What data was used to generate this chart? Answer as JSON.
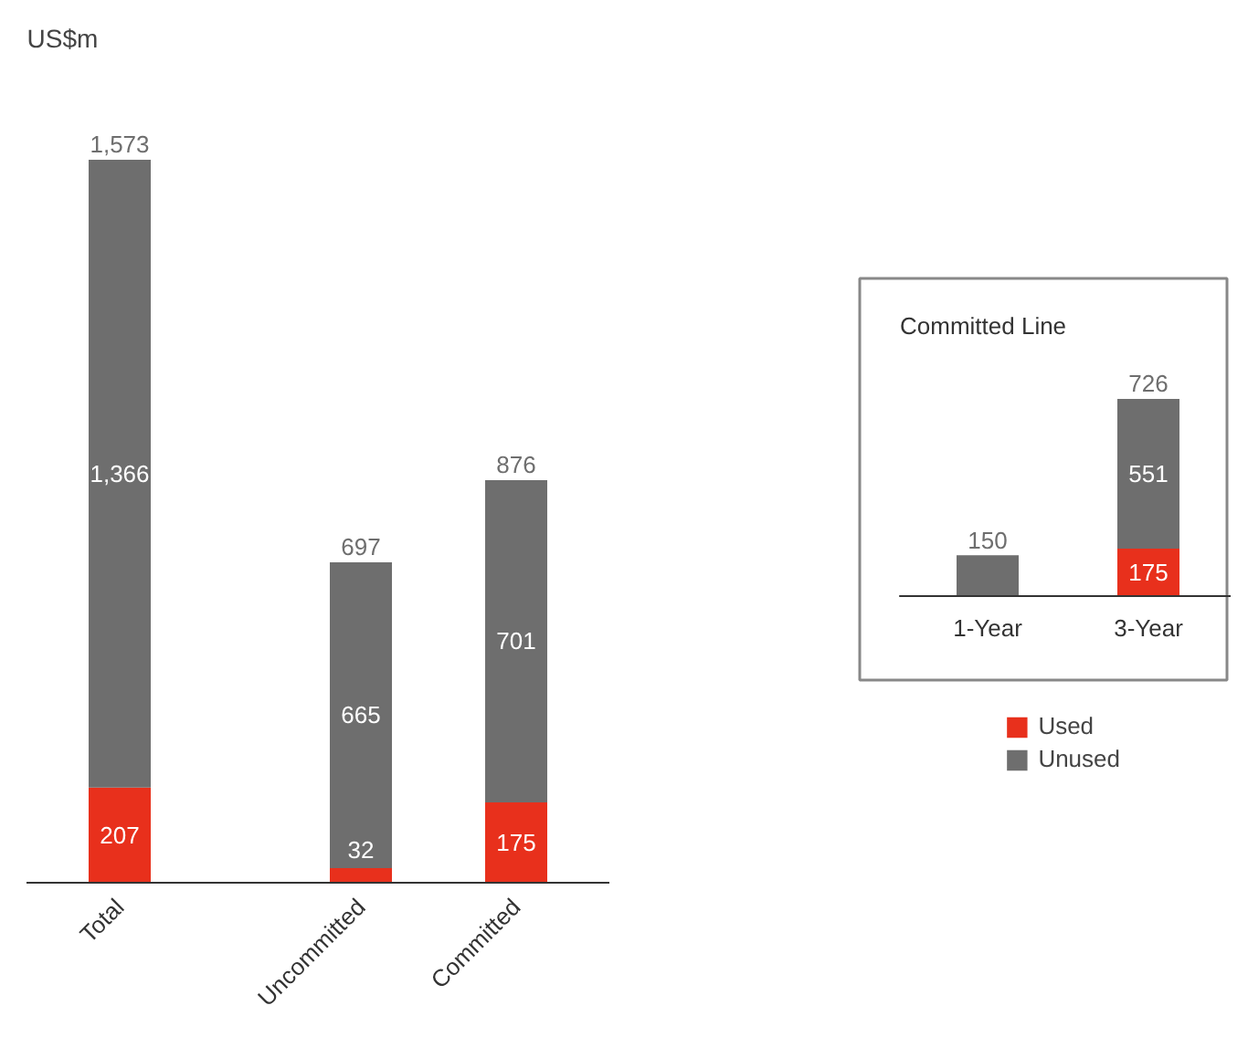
{
  "chart_data": [
    {
      "type": "bar",
      "stacked": true,
      "ylabel": "US$m",
      "categories": [
        "Total",
        "Uncommitted",
        "Committed"
      ],
      "series": [
        {
          "name": "Used",
          "color": "#e8301c",
          "values": [
            207,
            32,
            175
          ],
          "value_labels": [
            "207",
            "32",
            "175"
          ]
        },
        {
          "name": "Unused",
          "color": "#6e6e6e",
          "values": [
            1366,
            665,
            701
          ],
          "value_labels": [
            "1,366",
            "665",
            "701"
          ]
        }
      ],
      "totals": [
        "1,573",
        "697",
        "876"
      ],
      "legend": "bottom right"
    },
    {
      "type": "bar",
      "stacked": true,
      "title": "Committed Line",
      "categories": [
        "1-Year",
        "3-Year"
      ],
      "series": [
        {
          "color": "#e8301c",
          "values": [
            null,
            175
          ],
          "value_labels": [
            null,
            "175"
          ]
        },
        {
          "color": "#6e6e6e",
          "values": [
            150,
            551
          ],
          "value_labels": [
            null,
            "551"
          ]
        }
      ],
      "totals": [
        "150",
        "726"
      ]
    }
  ]
}
